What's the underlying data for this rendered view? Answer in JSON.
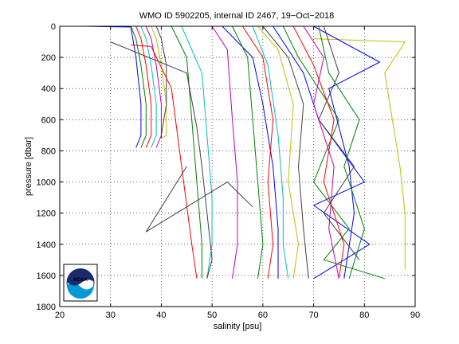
{
  "chart_data": {
    "type": "line",
    "title": "WMO ID 5902205, internal ID 2467, 19−Oct−2018",
    "xlabel": "salinity [psu]",
    "ylabel": "pressure [dbar]",
    "xlim": [
      20,
      90
    ],
    "ylim": [
      0,
      1800
    ],
    "y_inverted": true,
    "grid": true,
    "x_ticks": [
      "20",
      "30",
      "40",
      "50",
      "60",
      "70",
      "80",
      "90"
    ],
    "y_ticks": [
      "0",
      "200",
      "400",
      "600",
      "800",
      "1000",
      "1200",
      "1400",
      "1600",
      "1800"
    ],
    "series": [
      {
        "color": "#0000ff",
        "x": [
          25,
          34,
          35,
          36,
          36,
          35
        ],
        "y": [
          0,
          5,
          200,
          500,
          700,
          780
        ]
      },
      {
        "color": "#008000",
        "x": [
          34,
          35,
          36,
          37,
          37,
          36
        ],
        "y": [
          0,
          80,
          250,
          500,
          700,
          780
        ]
      },
      {
        "color": "#ff0000",
        "x": [
          35,
          36,
          37,
          38,
          38,
          37
        ],
        "y": [
          0,
          80,
          250,
          500,
          700,
          780
        ]
      },
      {
        "color": "#00bfbf",
        "x": [
          36,
          37,
          38,
          39,
          39,
          38
        ],
        "y": [
          0,
          80,
          250,
          500,
          700,
          780
        ]
      },
      {
        "color": "#bf00bf",
        "x": [
          37,
          38,
          39,
          40,
          40,
          39
        ],
        "y": [
          0,
          80,
          250,
          500,
          700,
          780
        ]
      },
      {
        "color": "#bfbf00",
        "x": [
          38,
          39,
          40,
          41,
          41,
          40
        ],
        "y": [
          0,
          80,
          250,
          500,
          700,
          720
        ]
      },
      {
        "color": "#404040",
        "x": [
          39,
          40,
          41,
          41,
          40,
          40
        ],
        "y": [
          0,
          80,
          250,
          500,
          700,
          720
        ]
      },
      {
        "color": "#ff0000",
        "x": [
          34,
          38,
          42,
          44,
          46,
          47
        ],
        "y": [
          120,
          130,
          400,
          900,
          1400,
          1620
        ]
      },
      {
        "color": "#008000",
        "x": [
          42,
          45,
          46,
          47,
          48,
          48
        ],
        "y": [
          0,
          200,
          600,
          1000,
          1400,
          1620
        ]
      },
      {
        "color": "#00bfbf",
        "x": [
          44,
          48,
          49,
          50,
          50,
          49
        ],
        "y": [
          0,
          300,
          700,
          1100,
          1400,
          1620
        ]
      },
      {
        "color": "#404040",
        "x": [
          30,
          45,
          47,
          48,
          49,
          50,
          49
        ],
        "y": [
          100,
          300,
          650,
          900,
          1200,
          1500,
          1620
        ]
      },
      {
        "color": "#404040",
        "x": [
          45,
          37,
          53,
          58
        ],
        "y": [
          900,
          1320,
          1000,
          1160
        ]
      },
      {
        "color": "#bf00bf",
        "x": [
          50,
          53,
          54,
          55,
          55,
          54
        ],
        "y": [
          0,
          150,
          600,
          1000,
          1400,
          1620
        ]
      },
      {
        "color": "#0000ff",
        "x": [
          52,
          58,
          60,
          62,
          63,
          63
        ],
        "y": [
          0,
          200,
          500,
          900,
          1300,
          1620
        ]
      },
      {
        "color": "#008000",
        "x": [
          54,
          57,
          58,
          59,
          60,
          59
        ],
        "y": [
          0,
          200,
          600,
          1000,
          1400,
          1620
        ]
      },
      {
        "color": "#ff0000",
        "x": [
          56,
          60,
          62,
          61,
          62,
          61
        ],
        "y": [
          0,
          200,
          600,
          1000,
          1400,
          1620
        ]
      },
      {
        "color": "#00bfbf",
        "x": [
          58,
          61,
          63,
          64,
          64,
          65
        ],
        "y": [
          0,
          250,
          700,
          1100,
          1400,
          1620
        ]
      },
      {
        "color": "#bfbf00",
        "x": [
          59,
          63,
          66,
          65,
          67,
          66
        ],
        "y": [
          0,
          150,
          500,
          1000,
          1400,
          1620
        ]
      },
      {
        "color": "#404040",
        "x": [
          60,
          65,
          68,
          67,
          68,
          69
        ],
        "y": [
          0,
          200,
          500,
          900,
          1300,
          1620
        ]
      },
      {
        "color": "#0000ff",
        "x": [
          62,
          68,
          71,
          80,
          70,
          81,
          70
        ],
        "y": [
          0,
          300,
          600,
          1000,
          1150,
          1400,
          1620
        ]
      },
      {
        "color": "#008000",
        "x": [
          64,
          67,
          75,
          70,
          77,
          72,
          84
        ],
        "y": [
          0,
          200,
          600,
          1000,
          1300,
          1500,
          1620
        ]
      },
      {
        "color": "#ff0000",
        "x": [
          66,
          70,
          74,
          72,
          76,
          75
        ],
        "y": [
          0,
          250,
          600,
          1000,
          1400,
          1620
        ]
      },
      {
        "color": "#bf00bf",
        "x": [
          68,
          72,
          70,
          74,
          73,
          75
        ],
        "y": [
          0,
          200,
          500,
          900,
          1300,
          1620
        ]
      },
      {
        "color": "#bfbf00",
        "x": [
          70,
          88,
          84,
          87,
          88,
          88
        ],
        "y": [
          80,
          100,
          300,
          900,
          1200,
          1560
        ]
      },
      {
        "color": "#404040",
        "x": [
          72,
          75,
          71,
          78,
          72,
          79
        ],
        "y": [
          0,
          300,
          600,
          900,
          1200,
          1500
        ]
      },
      {
        "color": "#0000ff",
        "x": [
          70,
          83,
          73,
          77,
          78,
          76
        ],
        "y": [
          0,
          230,
          400,
          900,
          1200,
          1620
        ]
      },
      {
        "color": "#008000",
        "x": [
          71,
          73,
          79,
          76,
          80,
          77
        ],
        "y": [
          0,
          300,
          600,
          900,
          1300,
          1620
        ]
      }
    ]
  }
}
